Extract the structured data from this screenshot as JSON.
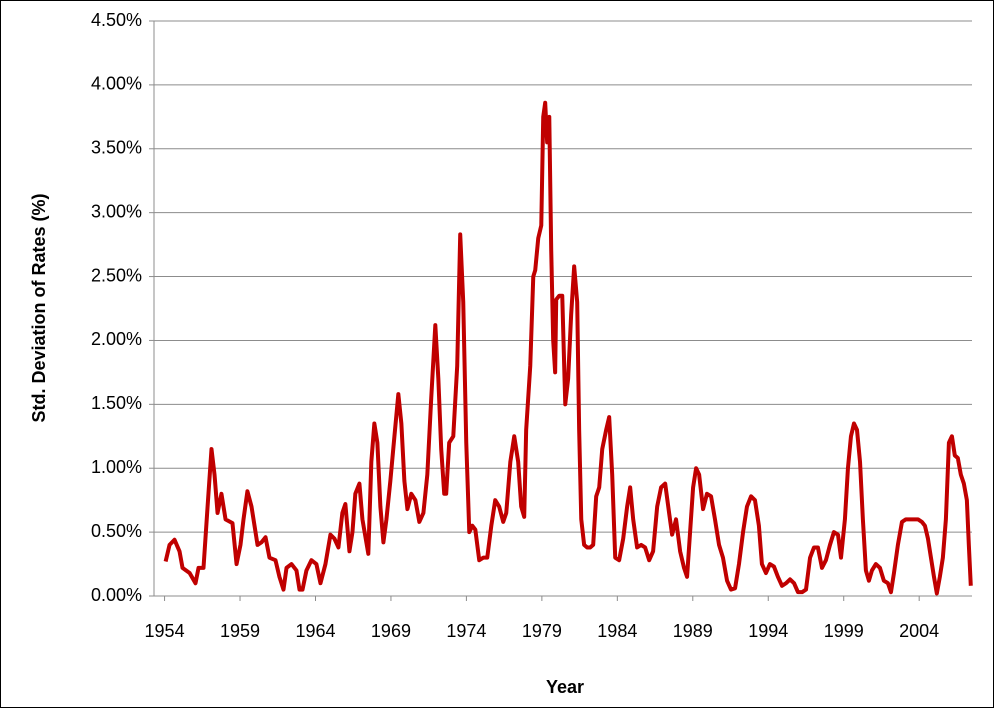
{
  "chart_data": {
    "type": "line",
    "x_label": "Year",
    "y_label": "Std. Deviation of Rates (%)",
    "color": "#c00000",
    "grid": true,
    "xlim": [
      1953.3,
      2007.5
    ],
    "xticks": [
      1954,
      1959,
      1964,
      1969,
      1974,
      1979,
      1984,
      1989,
      1994,
      1999,
      2004
    ],
    "ylim": [
      0,
      4.5
    ],
    "yticks": [
      {
        "value": 0,
        "label": "0.00%"
      },
      {
        "value": 0.5,
        "label": "0.50%"
      },
      {
        "value": 1,
        "label": "1.00%"
      },
      {
        "value": 1.5,
        "label": "1.50%"
      },
      {
        "value": 2,
        "label": "2.00%"
      },
      {
        "value": 2.5,
        "label": "2.50%"
      },
      {
        "value": 3,
        "label": "3.00%"
      },
      {
        "value": 3.5,
        "label": "3.50%"
      },
      {
        "value": 4,
        "label": "4.00%"
      },
      {
        "value": 4.5,
        "label": "4.50%"
      }
    ],
    "x": [
      1954.07,
      1954.33,
      1954.66,
      1954.99,
      1955.19,
      1955.66,
      1956.05,
      1956.25,
      1956.58,
      1956.85,
      1957.11,
      1957.31,
      1957.51,
      1957.77,
      1958.04,
      1958.5,
      1958.77,
      1959.03,
      1959.23,
      1959.49,
      1959.76,
      1959.96,
      1960.16,
      1960.42,
      1960.69,
      1960.95,
      1961.35,
      1961.61,
      1961.88,
      1962.08,
      1962.41,
      1962.74,
      1962.94,
      1963.14,
      1963.4,
      1963.73,
      1964.06,
      1964.33,
      1964.66,
      1964.99,
      1965.25,
      1965.52,
      1965.78,
      1965.98,
      1966.25,
      1966.45,
      1966.64,
      1966.91,
      1967.11,
      1967.5,
      1967.7,
      1967.9,
      1968.1,
      1968.3,
      1968.5,
      1968.7,
      1968.96,
      1969.23,
      1969.49,
      1969.69,
      1969.89,
      1970.09,
      1970.35,
      1970.62,
      1970.88,
      1971.15,
      1971.41,
      1971.67,
      1971.94,
      1972.14,
      1972.33,
      1972.53,
      1972.66,
      1972.86,
      1973.13,
      1973.39,
      1973.59,
      1973.79,
      1973.99,
      1974.19,
      1974.39,
      1974.59,
      1974.85,
      1975.12,
      1975.38,
      1975.65,
      1975.91,
      1976.17,
      1976.44,
      1976.64,
      1976.91,
      1977.17,
      1977.43,
      1977.63,
      1977.83,
      1977.96,
      1978.23,
      1978.43,
      1978.56,
      1978.76,
      1978.96,
      1979.09,
      1979.22,
      1979.35,
      1979.49,
      1979.62,
      1979.75,
      1979.88,
      1979.95,
      1980.15,
      1980.35,
      1980.55,
      1980.74,
      1980.94,
      1981.14,
      1981.34,
      1981.47,
      1981.61,
      1981.8,
      1982.0,
      1982.2,
      1982.4,
      1982.6,
      1982.8,
      1983.0,
      1983.26,
      1983.46,
      1983.66,
      1983.86,
      1984.12,
      1984.39,
      1984.65,
      1984.85,
      1985.05,
      1985.31,
      1985.58,
      1985.84,
      1986.11,
      1986.37,
      1986.64,
      1986.9,
      1987.17,
      1987.43,
      1987.63,
      1987.89,
      1988.16,
      1988.42,
      1988.62,
      1988.82,
      1989.02,
      1989.22,
      1989.42,
      1989.68,
      1989.94,
      1990.21,
      1990.47,
      1990.74,
      1991.0,
      1991.27,
      1991.53,
      1991.8,
      1992.06,
      1992.33,
      1992.59,
      1992.86,
      1993.12,
      1993.38,
      1993.58,
      1993.85,
      1994.11,
      1994.38,
      1994.64,
      1994.91,
      1995.18,
      1995.44,
      1995.71,
      1995.97,
      1996.24,
      1996.5,
      1996.77,
      1997.03,
      1997.29,
      1997.56,
      1997.82,
      1998.09,
      1998.35,
      1998.62,
      1998.82,
      1999.08,
      1999.28,
      1999.48,
      1999.68,
      1999.88,
      2000.08,
      2000.27,
      2000.47,
      2000.67,
      2000.87,
      2001.13,
      2001.4,
      2001.66,
      2001.93,
      2002.13,
      2002.33,
      2002.59,
      2002.86,
      2003.12,
      2003.39,
      2003.65,
      2003.92,
      2004.18,
      2004.38,
      2004.58,
      2004.78,
      2004.98,
      2005.17,
      2005.37,
      2005.57,
      2005.77,
      2005.97,
      2006.17,
      2006.36,
      2006.56,
      2006.76,
      2006.96,
      2007.16,
      2007.29,
      2007.42
    ],
    "values": [
      0.27,
      0.4,
      0.44,
      0.35,
      0.22,
      0.18,
      0.1,
      0.22,
      0.22,
      0.7,
      1.15,
      0.95,
      0.65,
      0.8,
      0.6,
      0.57,
      0.25,
      0.4,
      0.6,
      0.82,
      0.7,
      0.55,
      0.4,
      0.42,
      0.46,
      0.3,
      0.28,
      0.15,
      0.05,
      0.22,
      0.25,
      0.2,
      0.05,
      0.05,
      0.2,
      0.28,
      0.25,
      0.1,
      0.25,
      0.48,
      0.45,
      0.38,
      0.65,
      0.72,
      0.35,
      0.5,
      0.8,
      0.88,
      0.6,
      0.33,
      1.05,
      1.35,
      1.2,
      0.7,
      0.42,
      0.6,
      0.9,
      1.25,
      1.58,
      1.35,
      0.9,
      0.68,
      0.8,
      0.75,
      0.58,
      0.65,
      0.95,
      1.55,
      2.12,
      1.7,
      1.15,
      0.8,
      0.8,
      1.2,
      1.25,
      1.8,
      2.83,
      2.3,
      1.2,
      0.5,
      0.55,
      0.52,
      0.28,
      0.3,
      0.3,
      0.55,
      0.75,
      0.7,
      0.58,
      0.65,
      1.05,
      1.25,
      1.05,
      0.7,
      0.62,
      1.3,
      1.8,
      2.5,
      2.55,
      2.8,
      2.9,
      3.75,
      3.86,
      3.55,
      3.75,
      2.7,
      2.0,
      1.75,
      2.32,
      2.35,
      2.35,
      1.5,
      1.7,
      2.2,
      2.58,
      2.3,
      1.3,
      0.6,
      0.4,
      0.38,
      0.38,
      0.4,
      0.78,
      0.85,
      1.15,
      1.3,
      1.4,
      0.95,
      0.3,
      0.28,
      0.45,
      0.7,
      0.85,
      0.6,
      0.38,
      0.4,
      0.38,
      0.28,
      0.35,
      0.7,
      0.85,
      0.88,
      0.65,
      0.48,
      0.6,
      0.35,
      0.22,
      0.15,
      0.5,
      0.85,
      1.0,
      0.95,
      0.68,
      0.8,
      0.78,
      0.6,
      0.4,
      0.3,
      0.12,
      0.05,
      0.06,
      0.25,
      0.5,
      0.7,
      0.78,
      0.75,
      0.55,
      0.25,
      0.18,
      0.25,
      0.23,
      0.15,
      0.08,
      0.1,
      0.13,
      0.1,
      0.03,
      0.03,
      0.05,
      0.3,
      0.38,
      0.38,
      0.22,
      0.28,
      0.4,
      0.5,
      0.48,
      0.3,
      0.6,
      1.0,
      1.25,
      1.35,
      1.3,
      1.05,
      0.6,
      0.2,
      0.12,
      0.2,
      0.25,
      0.22,
      0.12,
      0.1,
      0.03,
      0.18,
      0.4,
      0.58,
      0.6,
      0.6,
      0.6,
      0.6,
      0.58,
      0.55,
      0.45,
      0.3,
      0.15,
      0.02,
      0.15,
      0.3,
      0.6,
      1.2,
      1.25,
      1.1,
      1.08,
      0.95,
      0.88,
      0.75,
      0.4,
      0.08
    ]
  }
}
